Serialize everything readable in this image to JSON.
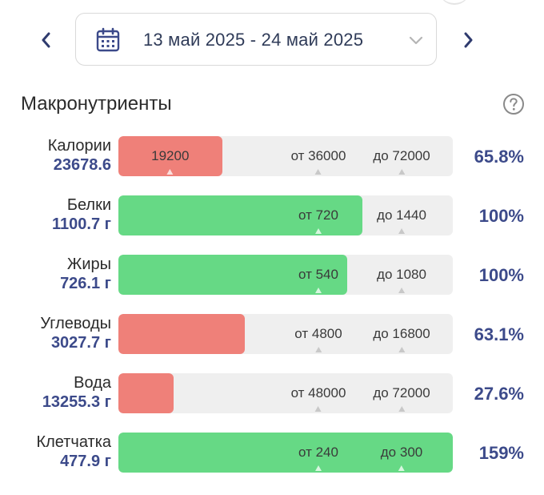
{
  "header": {
    "date_range": "13 май 2025 - 24 май 2025"
  },
  "section": {
    "title": "Макронутриенты"
  },
  "colors": {
    "red": "#ef8079",
    "green": "#66d985",
    "accent": "#3c4a8a"
  },
  "icons": {
    "prev": "chevron-left-icon",
    "next": "chevron-right-icon",
    "calendar": "calendar-icon",
    "dropdown": "chevron-down-icon",
    "help": "help-icon"
  },
  "rows": [
    {
      "name": "Калории",
      "value": "23678.6",
      "fill_color": "red",
      "fill_fraction": 0.31,
      "bar_marker": "19200",
      "from": "от 36000",
      "to": "до 72000",
      "percent": "65.8%"
    },
    {
      "name": "Белки",
      "value": "1100.7 г",
      "fill_color": "green",
      "fill_fraction": 0.73,
      "bar_marker": "",
      "from": "от 720",
      "to": "до 1440",
      "percent": "100%"
    },
    {
      "name": "Жиры",
      "value": "726.1 г",
      "fill_color": "green",
      "fill_fraction": 0.685,
      "bar_marker": "",
      "from": "от 540",
      "to": "до 1080",
      "percent": "100%"
    },
    {
      "name": "Углеводы",
      "value": "3027.7 г",
      "fill_color": "red",
      "fill_fraction": 0.378,
      "bar_marker": "",
      "from": "от 4800",
      "to": "до 16800",
      "percent": "63.1%"
    },
    {
      "name": "Вода",
      "value": "13255.3 г",
      "fill_color": "red",
      "fill_fraction": 0.165,
      "bar_marker": "",
      "from": "от 48000",
      "to": "до 72000",
      "percent": "27.6%"
    },
    {
      "name": "Клетчатка",
      "value": "477.9 г",
      "fill_color": "green",
      "fill_fraction": 1.0,
      "bar_marker": "",
      "from": "от 240",
      "to": "до 300",
      "percent": "159%"
    }
  ]
}
